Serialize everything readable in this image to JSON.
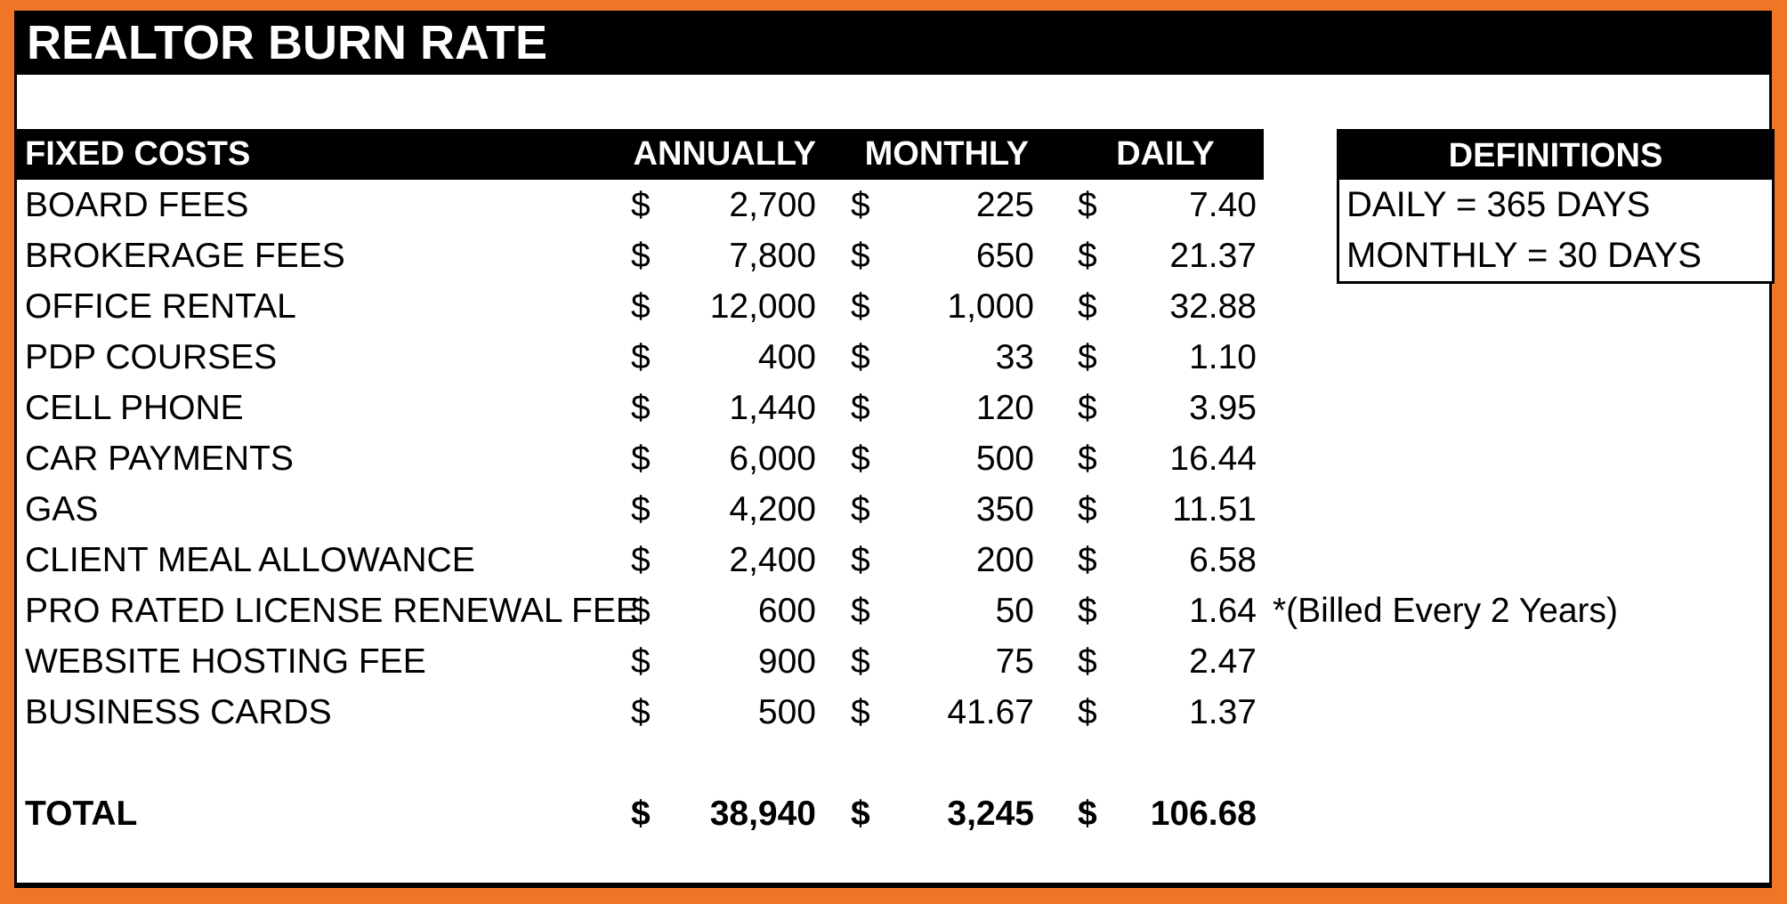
{
  "title": "REALTOR BURN RATE",
  "table": {
    "currency_symbol": "$",
    "headers": {
      "label": "FIXED COSTS",
      "annually": "ANNUALLY",
      "monthly": "MONTHLY",
      "daily": "DAILY"
    },
    "rows": [
      {
        "label": "BOARD FEES",
        "annually": "2,700",
        "monthly": "225",
        "daily": "7.40",
        "note": ""
      },
      {
        "label": "BROKERAGE FEES",
        "annually": "7,800",
        "monthly": "650",
        "daily": "21.37",
        "note": ""
      },
      {
        "label": "OFFICE RENTAL",
        "annually": "12,000",
        "monthly": "1,000",
        "daily": "32.88",
        "note": ""
      },
      {
        "label": "PDP COURSES",
        "annually": "400",
        "monthly": "33",
        "daily": "1.10",
        "note": ""
      },
      {
        "label": "CELL PHONE",
        "annually": "1,440",
        "monthly": "120",
        "daily": "3.95",
        "note": ""
      },
      {
        "label": "CAR PAYMENTS",
        "annually": "6,000",
        "monthly": "500",
        "daily": "16.44",
        "note": ""
      },
      {
        "label": "GAS",
        "annually": "4,200",
        "monthly": "350",
        "daily": "11.51",
        "note": ""
      },
      {
        "label": "CLIENT MEAL ALLOWANCE",
        "annually": "2,400",
        "monthly": "200",
        "daily": "6.58",
        "note": ""
      },
      {
        "label": "PRO RATED LICENSE RENEWAL FEE",
        "annually": "600",
        "monthly": "50",
        "daily": "1.64",
        "note": "*(Billed Every 2 Years)"
      },
      {
        "label": "WEBSITE HOSTING FEE",
        "annually": "900",
        "monthly": "75",
        "daily": "2.47",
        "note": ""
      },
      {
        "label": "BUSINESS CARDS",
        "annually": "500",
        "monthly": "41.67",
        "daily": "1.37",
        "note": ""
      }
    ],
    "total": {
      "label": "TOTAL",
      "annually": "38,940",
      "monthly": "3,245",
      "daily": "106.68"
    }
  },
  "definitions": {
    "title": "DEFINITIONS",
    "items": [
      "DAILY = 365 DAYS",
      "MONTHLY = 30 DAYS"
    ]
  },
  "colors": {
    "frame_orange": "#EF7627",
    "bar_black": "#000000",
    "sheet_white": "#FFFFFF",
    "text_black": "#000000",
    "header_text_white": "#FFFFFF"
  }
}
